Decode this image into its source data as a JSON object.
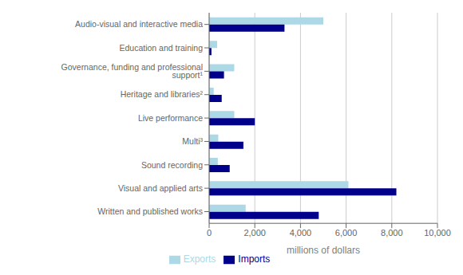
{
  "chart_data": {
    "type": "bar",
    "orientation": "horizontal",
    "categories": [
      "Audio-visual and interactive media",
      "Education and training",
      "Governance, funding and professional support¹",
      "Heritage and libraries²",
      "Live performance",
      "Multi³",
      "Sound recording",
      "Visual and applied arts",
      "Written and published works"
    ],
    "series": [
      {
        "name": "Exports",
        "color": "#add8e6",
        "values": [
          5000,
          350,
          1100,
          200,
          1100,
          400,
          380,
          6100,
          1600
        ]
      },
      {
        "name": "Imports",
        "color": "#00008b",
        "values": [
          3300,
          100,
          650,
          550,
          2000,
          1500,
          900,
          8200,
          4800
        ]
      }
    ],
    "xlabel": "millions of dollars",
    "xlim": [
      0,
      10000
    ],
    "xticks": [
      0,
      {
        "value": 2000,
        "label": "2,000"
      },
      {
        "value": 4000,
        "label": "4,000"
      },
      {
        "value": 6000,
        "label": "6,000"
      },
      {
        "value": 8000,
        "label": "8,000"
      },
      {
        "value": 10000,
        "label": "10,000"
      }
    ],
    "grid": true,
    "legend": "bottom"
  }
}
